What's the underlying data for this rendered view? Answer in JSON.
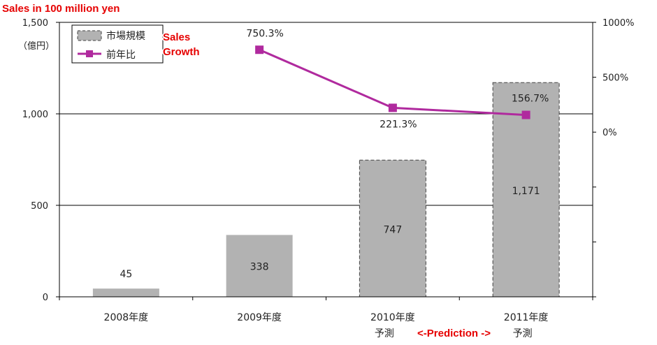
{
  "chart_data": {
    "type": "bar+line",
    "categories": [
      {
        "line1": "2008年度",
        "line2": ""
      },
      {
        "line1": "2009年度",
        "line2": ""
      },
      {
        "line1": "2010年度",
        "line2": "予測"
      },
      {
        "line1": "2011年度",
        "line2": "予測"
      }
    ],
    "series": [
      {
        "name": "市場規模",
        "type": "bar",
        "axis": "left",
        "values": [
          45,
          338,
          747,
          1171
        ],
        "labels": [
          "45",
          "338",
          "747",
          "1,171"
        ],
        "projected": [
          false,
          false,
          true,
          true
        ],
        "color": "#b2b2b2"
      },
      {
        "name": "前年比",
        "type": "line",
        "axis": "right",
        "values": [
          null,
          750.3,
          221.3,
          156.7
        ],
        "labels": [
          "",
          "750.3%",
          "221.3%",
          "156.7%"
        ],
        "color": "#b02a9e"
      }
    ],
    "left_axis": {
      "unit": "（億円）",
      "ylim": [
        0,
        1500
      ],
      "ticks": [
        0,
        500,
        1000,
        1500
      ],
      "tick_labels": [
        "0",
        "500",
        "1,000",
        "1,500"
      ]
    },
    "right_axis": {
      "ylim": [
        -1500,
        1000
      ],
      "ticks": [
        0,
        500,
        1000
      ],
      "tick_labels": [
        "0%",
        "500%",
        "1000%"
      ]
    },
    "gridlines": true,
    "legend_position": "top-left",
    "annotations": {
      "title": "Sales in 100 million yen",
      "legend_sales": [
        "Sales",
        "Growth"
      ],
      "prediction": "<-Prediction ->"
    }
  }
}
